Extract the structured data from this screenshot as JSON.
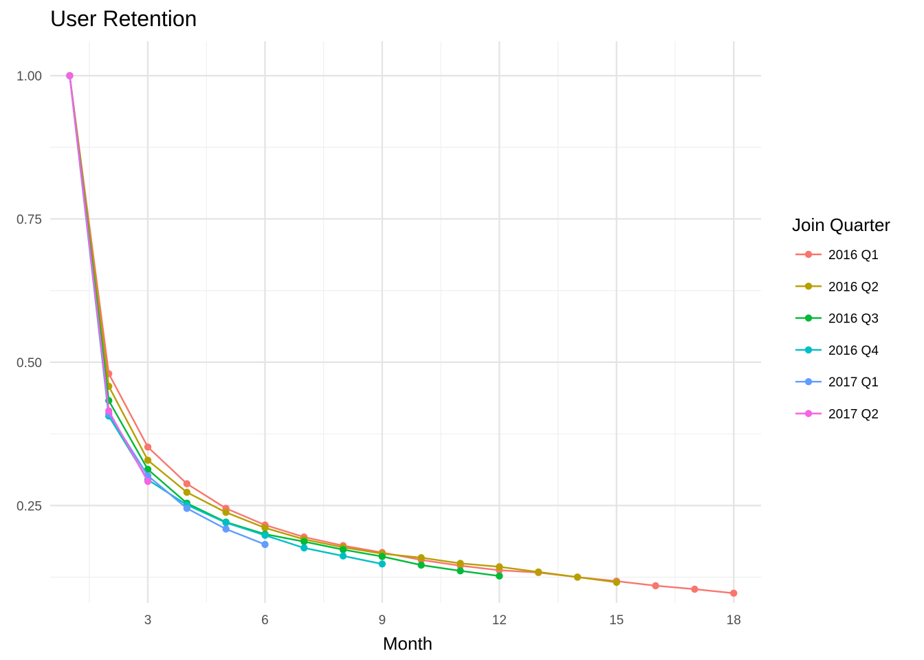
{
  "chart_data": {
    "type": "line",
    "title": "User Retention",
    "xlabel": "Month",
    "ylabel": "",
    "xlim": [
      0.5,
      18.7
    ],
    "ylim": [
      0.08,
      1.06
    ],
    "x_ticks": [
      3,
      6,
      9,
      12,
      15,
      18
    ],
    "x_tick_labels": [
      "3",
      "6",
      "9",
      "12",
      "15",
      "18"
    ],
    "y_ticks": [
      0.25,
      0.5,
      0.75,
      1.0
    ],
    "y_tick_labels": [
      "0.25",
      "0.50",
      "0.75",
      "1.00"
    ],
    "grid": true,
    "markers": true,
    "legend": {
      "title": "Join Quarter",
      "position": "right"
    },
    "series": [
      {
        "name": "2016 Q1",
        "color": "#F8766D",
        "x": [
          1,
          2,
          3,
          4,
          5,
          6,
          7,
          8,
          9,
          10,
          11,
          12,
          13,
          14,
          15,
          16,
          17,
          18
        ],
        "y": [
          1.0,
          0.48,
          0.352,
          0.288,
          0.245,
          0.216,
          0.195,
          0.18,
          0.168,
          0.155,
          0.145,
          0.137,
          0.133,
          0.125,
          0.118,
          0.11,
          0.104,
          0.097
        ]
      },
      {
        "name": "2016 Q2",
        "color": "#B79F00",
        "x": [
          1,
          2,
          3,
          4,
          5,
          6,
          7,
          8,
          9,
          10,
          11,
          12,
          13,
          14,
          15
        ],
        "y": [
          1.0,
          0.458,
          0.329,
          0.273,
          0.238,
          0.211,
          0.191,
          0.177,
          0.166,
          0.159,
          0.149,
          0.143,
          0.134,
          0.125,
          0.116
        ]
      },
      {
        "name": "2016 Q3",
        "color": "#00BA38",
        "x": [
          1,
          2,
          3,
          4,
          5,
          6,
          7,
          8,
          9,
          10,
          11,
          12
        ],
        "y": [
          1.0,
          0.433,
          0.313,
          0.254,
          0.221,
          0.2,
          0.187,
          0.173,
          0.161,
          0.146,
          0.136,
          0.127
        ]
      },
      {
        "name": "2016 Q4",
        "color": "#00BFC4",
        "x": [
          1,
          2,
          3,
          4,
          5,
          6,
          7,
          8,
          9
        ],
        "y": [
          1.0,
          0.406,
          0.295,
          0.251,
          0.22,
          0.198,
          0.176,
          0.162,
          0.148
        ]
      },
      {
        "name": "2017 Q1",
        "color": "#619CFF",
        "x": [
          1,
          2,
          3,
          4,
          5,
          6
        ],
        "y": [
          1.0,
          0.41,
          0.302,
          0.245,
          0.209,
          0.182
        ]
      },
      {
        "name": "2017 Q2",
        "color": "#F564E3",
        "x": [
          1,
          2,
          3
        ],
        "y": [
          1.0,
          0.415,
          0.292
        ]
      }
    ]
  }
}
